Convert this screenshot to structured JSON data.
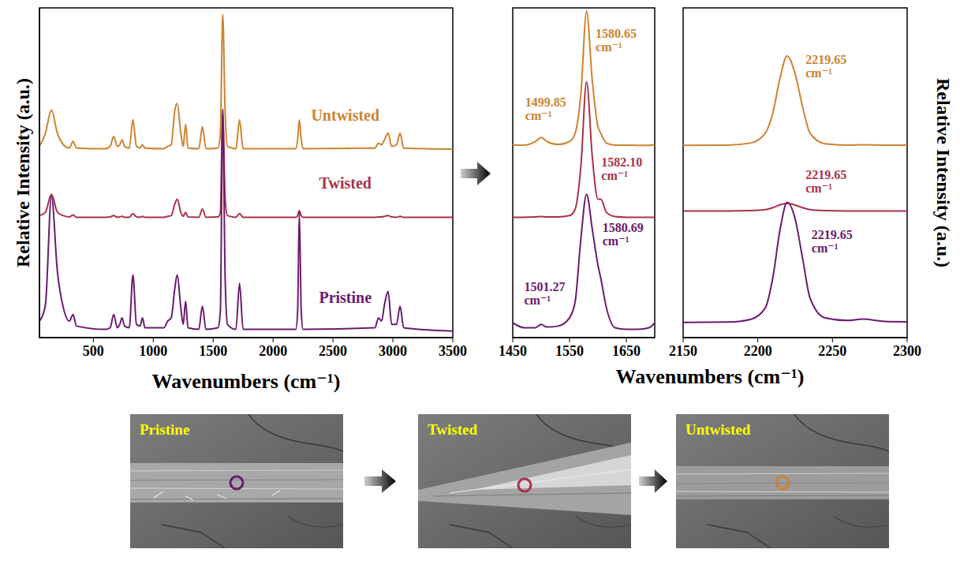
{
  "chart_data": [
    {
      "type": "line",
      "xlabel": "Wavenumbers (cm⁻¹)",
      "ylabel": "Relative Intensity (a.u.)",
      "xlim": [
        50,
        3500
      ],
      "xticks": [
        500,
        1000,
        1500,
        2000,
        2500,
        3000,
        3500
      ],
      "ylim": [
        0,
        100
      ],
      "tick_labels": "x",
      "x": [
        50,
        100,
        150,
        200,
        250,
        300,
        330,
        360,
        600,
        640,
        670,
        700,
        720,
        740,
        760,
        800,
        830,
        860,
        890,
        910,
        930,
        1090,
        1120,
        1150,
        1180,
        1200,
        1230,
        1250,
        1270,
        1290,
        1380,
        1410,
        1440,
        1540,
        1560,
        1580,
        1600,
        1620,
        1690,
        1720,
        1750,
        2190,
        2205,
        2219,
        2235,
        2250,
        2850,
        2880,
        2905,
        2930,
        2960,
        2990,
        3030,
        3060,
        3090,
        3500
      ],
      "series": [
        {
          "name": "Untwisted",
          "color": "#cc8330",
          "values": [
            58,
            62,
            69,
            62,
            58.5,
            57.5,
            59.5,
            57.5,
            57.3,
            58,
            61,
            58,
            58.5,
            60,
            58,
            57.5,
            66,
            58,
            57.5,
            58.5,
            57.5,
            57.3,
            58,
            58.5,
            69,
            71,
            62,
            58,
            64.7,
            57.5,
            57.3,
            64,
            57.3,
            57.5,
            62,
            98,
            68,
            58,
            57.3,
            66,
            57.3,
            57.3,
            60,
            66,
            60,
            57.3,
            57.5,
            59,
            58.5,
            60,
            62,
            58,
            58.5,
            62,
            57.5,
            57.2
          ]
        },
        {
          "name": "Twisted",
          "color": "#a8324a",
          "values": [
            37,
            38,
            43.5,
            38,
            37,
            36.6,
            37.2,
            36.5,
            36.5,
            36.6,
            37,
            36.5,
            36.6,
            36.8,
            36.5,
            36.5,
            37.6,
            36.6,
            36.5,
            36.8,
            36.5,
            36.5,
            36.8,
            37,
            40.5,
            42,
            38,
            36.8,
            38,
            36.6,
            36.5,
            39,
            36.5,
            36.6,
            38,
            69.4,
            42,
            37,
            36.5,
            37.6,
            36.5,
            36.5,
            37,
            38.5,
            37,
            36.5,
            36.5,
            36.6,
            36.6,
            36.8,
            37,
            36.6,
            36.5,
            36.8,
            36.5,
            36.5
          ]
        },
        {
          "name": "Pristine",
          "color": "#6a1b6e",
          "values": [
            5,
            10,
            43,
            20,
            9,
            5,
            7,
            3.5,
            2.5,
            3,
            7,
            3,
            4,
            6,
            3.5,
            3,
            19,
            4,
            3.5,
            6,
            3,
            3,
            5,
            6,
            15,
            19,
            9,
            4,
            11,
            3,
            2.5,
            9.5,
            2.5,
            3,
            8,
            69,
            18,
            4,
            2.5,
            16.5,
            2.5,
            2.5,
            8,
            38,
            8,
            2.5,
            3,
            6,
            5,
            10,
            14,
            4,
            4,
            9.5,
            3,
            2
          ]
        }
      ]
    },
    {
      "type": "line",
      "xlabel": "Wavenumbers (cm⁻¹)",
      "xlim": [
        1450,
        1700
      ],
      "xticks": [
        1450,
        1550,
        1650
      ],
      "ylim": [
        0,
        100
      ],
      "tick_labels": "x",
      "x": [
        1450,
        1470,
        1490,
        1500,
        1510,
        1530,
        1550,
        1560,
        1570,
        1580,
        1590,
        1600,
        1605,
        1615,
        1630,
        1650,
        1670,
        1690,
        1700
      ],
      "series": [
        {
          "color": "#cc8330",
          "values": [
            58.4,
            58.4,
            59.5,
            60.7,
            59.5,
            58.6,
            59.5,
            62,
            74,
            99,
            78,
            64,
            62,
            59,
            58.4,
            58.4,
            58.3,
            58.3,
            58.5
          ]
        },
        {
          "color": "#a8324a",
          "values": [
            36.5,
            36.5,
            36.6,
            36.7,
            36.6,
            36.6,
            37,
            39,
            52,
            77.6,
            55,
            42,
            42,
            38,
            36.7,
            36.5,
            36.5,
            36.5,
            36.5
          ]
        },
        {
          "color": "#6a1b6e",
          "values": [
            4.5,
            3,
            3,
            4,
            3.2,
            3.5,
            6,
            11,
            30,
            43.5,
            33,
            22,
            18,
            9,
            3,
            2.5,
            2.5,
            3,
            4.5
          ]
        }
      ],
      "annotations": [
        {
          "text": "1580.65 cm⁻¹",
          "x": 1596,
          "y": 91,
          "color": "#cc8330"
        },
        {
          "text": "1499.85 cm⁻¹",
          "x": 1472,
          "y": 70,
          "color": "#cc8330"
        },
        {
          "text": "1582.10 cm⁻¹",
          "x": 1606,
          "y": 52,
          "color": "#a8324a"
        },
        {
          "text": "1580.69 cm⁻¹",
          "x": 1608,
          "y": 32,
          "color": "#6a1b6e"
        },
        {
          "text": "1501.27 cm⁻¹",
          "x": 1470,
          "y": 14,
          "color": "#6a1b6e"
        }
      ]
    },
    {
      "type": "line",
      "ylabel": "Relative Intensity (a.u.)",
      "xlim": [
        2150,
        2300
      ],
      "xticks": [
        2150,
        2200,
        2250,
        2300
      ],
      "ylim": [
        0,
        100
      ],
      "tick_labels": "x",
      "x": [
        2150,
        2180,
        2195,
        2205,
        2210,
        2215,
        2219.65,
        2225,
        2230,
        2235,
        2245,
        2260,
        2270,
        2285,
        2300
      ],
      "series": [
        {
          "color": "#cc8330",
          "values": [
            58.3,
            58.4,
            59,
            62,
            68,
            79,
            85.4,
            80,
            70,
            62,
            58.8,
            58.4,
            58.5,
            58.4,
            58.4
          ]
        },
        {
          "color": "#a8324a",
          "values": [
            38.4,
            38.4,
            38.5,
            38.8,
            39.4,
            40.3,
            40.7,
            40.2,
            39.4,
            38.8,
            38.5,
            38.4,
            38.4,
            38.4,
            38.4
          ]
        },
        {
          "color": "#6a1b6e",
          "values": [
            4.6,
            4.7,
            5.5,
            9,
            18,
            33,
            41,
            36,
            24,
            12,
            6,
            5.2,
            5.6,
            4.9,
            4.8
          ]
        }
      ],
      "annotations": [
        {
          "text": "2219.65 cm⁻¹",
          "x": 2232,
          "y": 83,
          "color": "#cc8330"
        },
        {
          "text": "2219.65 cm⁻¹",
          "x": 2232,
          "y": 48,
          "color": "#a8324a"
        },
        {
          "text": "2219.65 cm⁻¹",
          "x": 2236,
          "y": 30,
          "color": "#6a1b6e"
        }
      ]
    }
  ],
  "images": [
    {
      "label": "Pristine",
      "color": "#6a1b6e"
    },
    {
      "label": "Twisted",
      "color": "#a8324a"
    },
    {
      "label": "Untwisted",
      "color": "#cc8330"
    }
  ]
}
